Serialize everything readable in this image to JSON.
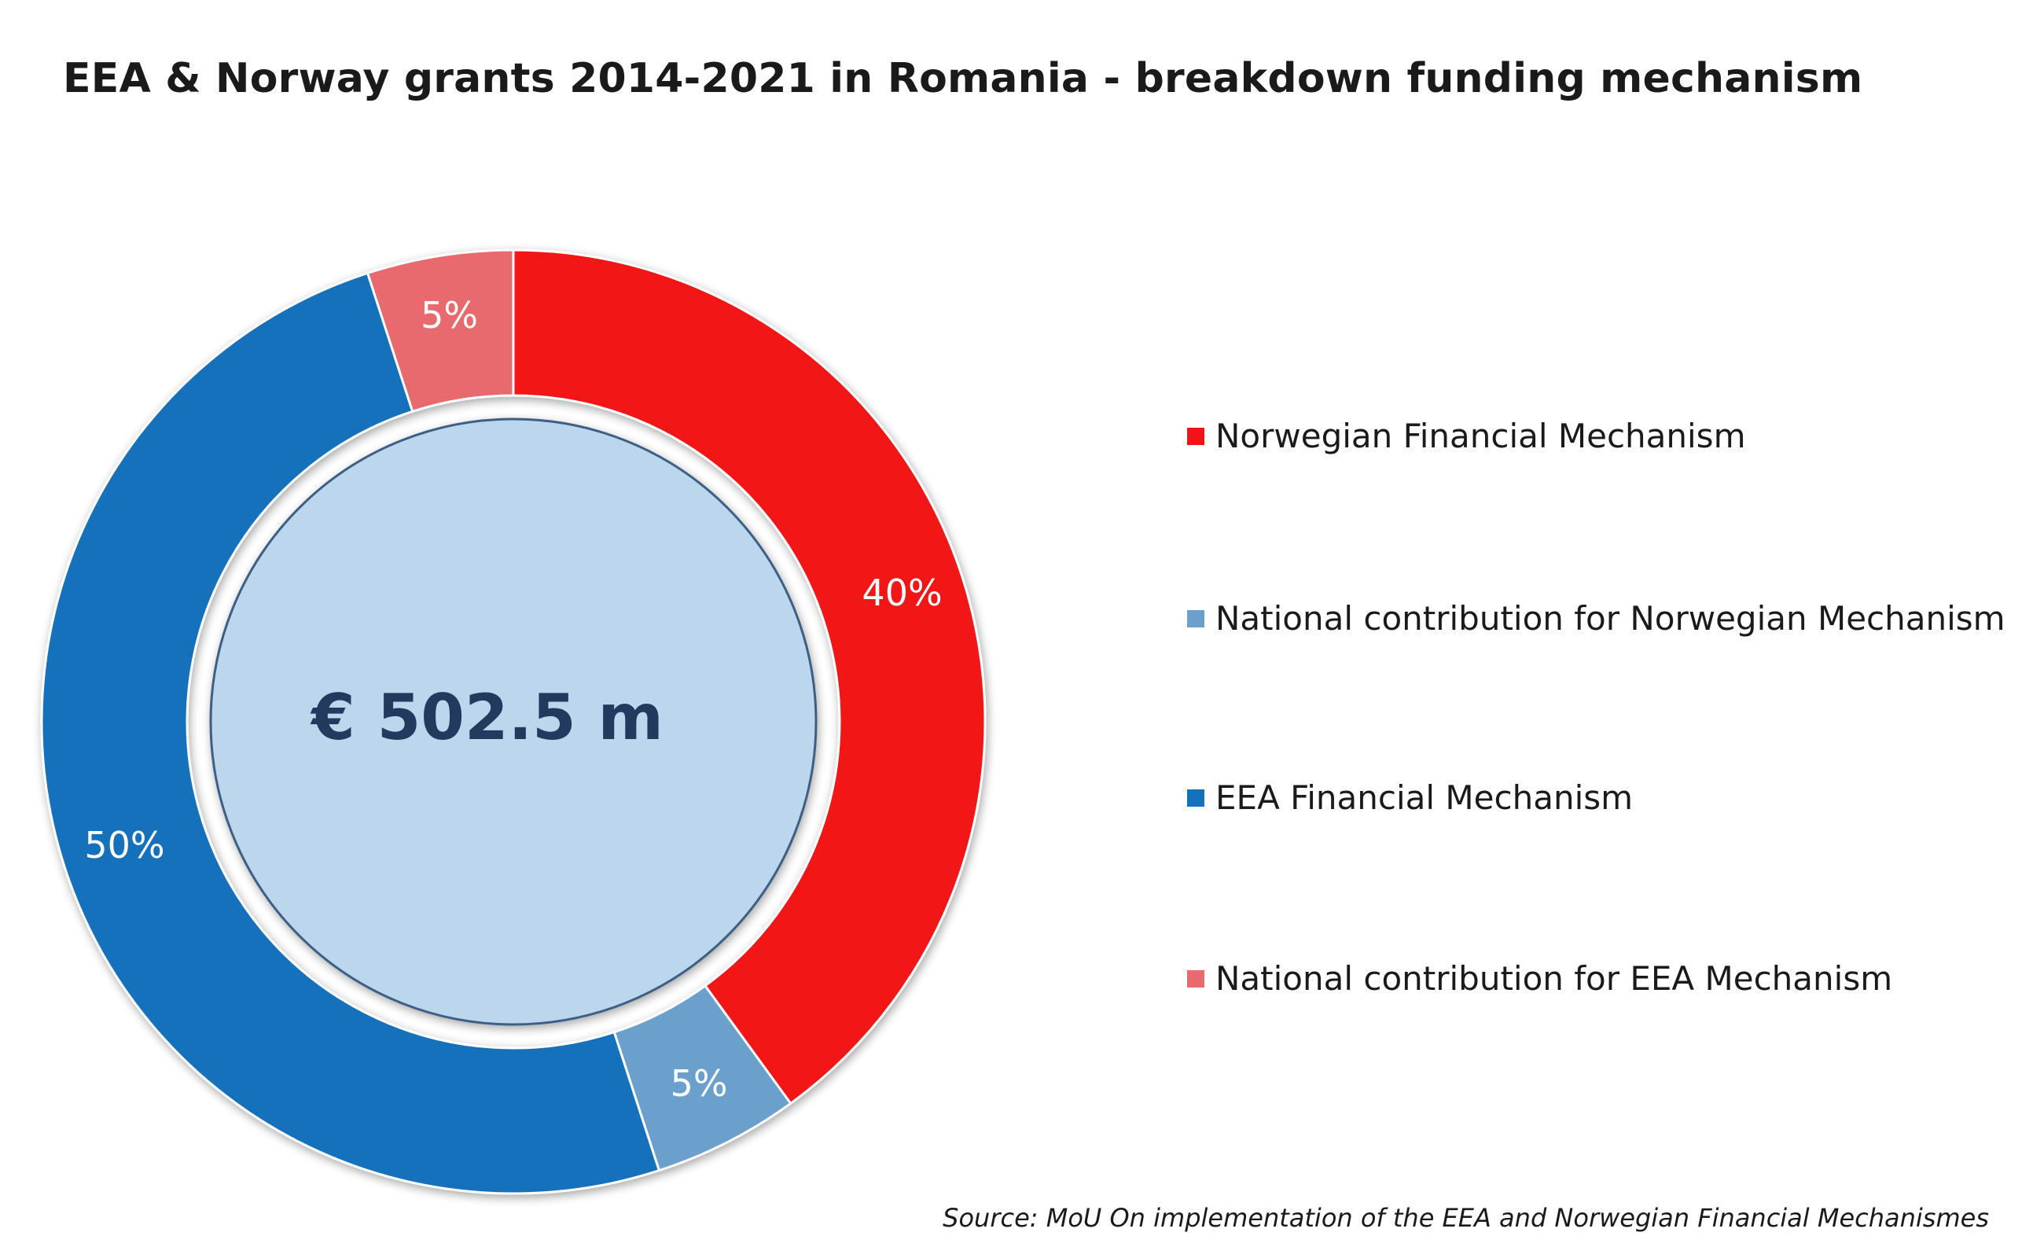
{
  "chart_data": {
    "type": "pie",
    "title": "EEA & Norway grants 2014-2021 in Romania - breakdown funding mechanism",
    "center_text": "€ 502.5 m",
    "source": "Source: MoU On implementation of the EEA and Norwegian Financial Mechanismes",
    "legend_position": "right",
    "slices": [
      {
        "name": "Norwegian Financial Mechanism",
        "value": 40,
        "label": "40%",
        "color": "#f21317"
      },
      {
        "name": "National contribution for Norwegian Mechanism",
        "value": 5,
        "label": "5%",
        "color": "#6ca0cc"
      },
      {
        "name": "EEA Financial Mechanism",
        "value": 50,
        "label": "50%",
        "color": "#1671bc"
      },
      {
        "name": "National contribution for EEA Mechanism",
        "value": 5,
        "label": "5%",
        "color": "#e96a6e"
      }
    ],
    "center_color": "#bcd6ee"
  }
}
